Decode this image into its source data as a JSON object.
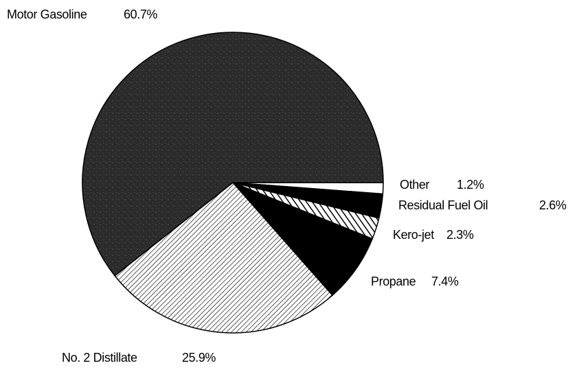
{
  "chart_data": {
    "type": "pie",
    "categories": [
      "Other",
      "Residual Fuel Oil",
      "Kero-jet",
      "Propane",
      "No. 2 Distillate",
      "Motor Gasoline"
    ],
    "values": [
      1.2,
      2.6,
      2.3,
      7.4,
      25.9,
      60.7
    ],
    "value_labels": [
      "1.2%",
      "2.6%",
      "2.3%",
      "7.4%",
      "25.9%",
      "60.7%"
    ],
    "colors": [
      "#ffffff",
      "#000000",
      "#ffffff",
      "#000000",
      "#ffffff",
      "#2b2b2b"
    ],
    "hatched": [
      false,
      false,
      true,
      false,
      true,
      false
    ]
  }
}
